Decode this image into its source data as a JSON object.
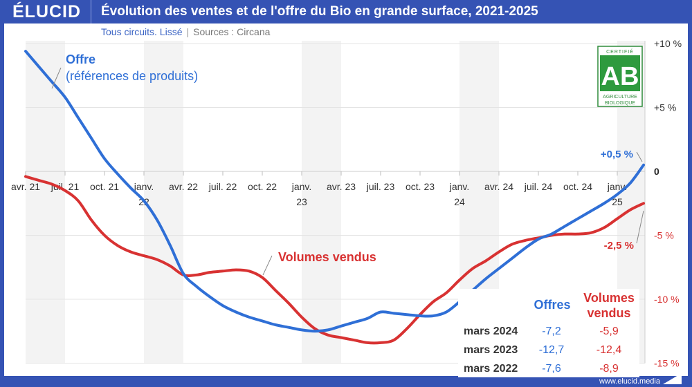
{
  "header": {
    "logo": "ÉLUCID",
    "title": "Évolution des ventes et de l'offre du Bio en grande surface, 2021-2025"
  },
  "subtitle": {
    "main": "Tous circuits. Lissé",
    "separator": "|",
    "sources": "Sources : Circana"
  },
  "footer": {
    "url": "www.elucid.media"
  },
  "badge": {
    "top": "CERTIFIÉ",
    "logo": "AB",
    "bottom1": "AGRICULTURE",
    "bottom2": "BIOLOGIQUE"
  },
  "colors": {
    "offre": "#2f6fd6",
    "volumes": "#d83232",
    "frame": "#3553b4"
  },
  "chart_data": {
    "type": "line",
    "title": "Évolution des ventes et de l'offre du Bio en grande surface, 2021-2025",
    "ylim": [
      -15,
      10
    ],
    "y_ticks": [
      {
        "v": 10,
        "label": "+10 %"
      },
      {
        "v": 5,
        "label": "+5 %"
      },
      {
        "v": 0,
        "label": "0"
      },
      {
        "v": -5,
        "label": "-5 %"
      },
      {
        "v": -10,
        "label": "-10 %"
      },
      {
        "v": -15,
        "label": "-15 %"
      }
    ],
    "x_ticks": [
      {
        "m": 0,
        "label": [
          "avr. 21"
        ]
      },
      {
        "m": 3,
        "label": [
          "juil. 21"
        ]
      },
      {
        "m": 6,
        "label": [
          "oct. 21"
        ]
      },
      {
        "m": 9,
        "label": [
          "janv.",
          "22"
        ]
      },
      {
        "m": 12,
        "label": [
          "avr. 22"
        ]
      },
      {
        "m": 15,
        "label": [
          "juil. 22"
        ]
      },
      {
        "m": 18,
        "label": [
          "oct. 22"
        ]
      },
      {
        "m": 21,
        "label": [
          "janv.",
          "23"
        ]
      },
      {
        "m": 24,
        "label": [
          "avr. 23"
        ]
      },
      {
        "m": 27,
        "label": [
          "juil. 23"
        ]
      },
      {
        "m": 30,
        "label": [
          "oct. 23"
        ]
      },
      {
        "m": 33,
        "label": [
          "janv.",
          "24"
        ]
      },
      {
        "m": 36,
        "label": [
          "avr. 24"
        ]
      },
      {
        "m": 39,
        "label": [
          "juil. 24"
        ]
      },
      {
        "m": 42,
        "label": [
          "oct. 24"
        ]
      },
      {
        "m": 45,
        "label": [
          "janv.",
          "25"
        ]
      }
    ],
    "x_start": "2021-04",
    "x_end": "2025-03",
    "grid": true,
    "series": [
      {
        "name": "Offre",
        "name2": "(références de produits)",
        "end_label": "+0,5 %",
        "values": [
          9.4,
          8.2,
          7.0,
          5.8,
          4.2,
          2.6,
          1.0,
          -0.2,
          -1.3,
          -2.3,
          -3.8,
          -5.8,
          -8.0,
          -9.0,
          -9.8,
          -10.5,
          -11.0,
          -11.4,
          -11.7,
          -12.0,
          -12.2,
          -12.4,
          -12.5,
          -12.4,
          -12.1,
          -11.8,
          -11.5,
          -11.0,
          -11.1,
          -11.2,
          -11.3,
          -11.3,
          -11.0,
          -10.2,
          -9.3,
          -8.4,
          -7.6,
          -6.8,
          -6.0,
          -5.3,
          -4.9,
          -4.3,
          -3.7,
          -3.1,
          -2.5,
          -1.8,
          -0.9,
          0.5
        ]
      },
      {
        "name": "Volumes vendus",
        "end_label": "-2,5 %",
        "values": [
          -0.4,
          -0.7,
          -1.0,
          -1.5,
          -2.3,
          -3.8,
          -5.0,
          -5.8,
          -6.3,
          -6.6,
          -6.9,
          -7.4,
          -8.1,
          -8.1,
          -7.9,
          -7.8,
          -7.7,
          -7.8,
          -8.3,
          -9.3,
          -10.3,
          -11.4,
          -12.3,
          -12.8,
          -13.0,
          -13.2,
          -13.4,
          -13.4,
          -13.2,
          -12.3,
          -11.2,
          -10.2,
          -9.5,
          -8.5,
          -7.6,
          -7.0,
          -6.3,
          -5.7,
          -5.4,
          -5.2,
          -5.0,
          -4.9,
          -4.9,
          -4.8,
          -4.4,
          -3.7,
          -3.0,
          -2.5
        ]
      }
    ],
    "table": {
      "headers": [
        "",
        "Offres",
        "Volumes",
        "vendus"
      ],
      "rows": [
        {
          "label": "mars 2024",
          "offres": "-7,2",
          "volumes": "-5,9"
        },
        {
          "label": "mars 2023",
          "offres": "-12,7",
          "volumes": "-12,4"
        },
        {
          "label": "mars 2022",
          "offres": "-7,6",
          "volumes": "-8,9"
        }
      ]
    }
  }
}
